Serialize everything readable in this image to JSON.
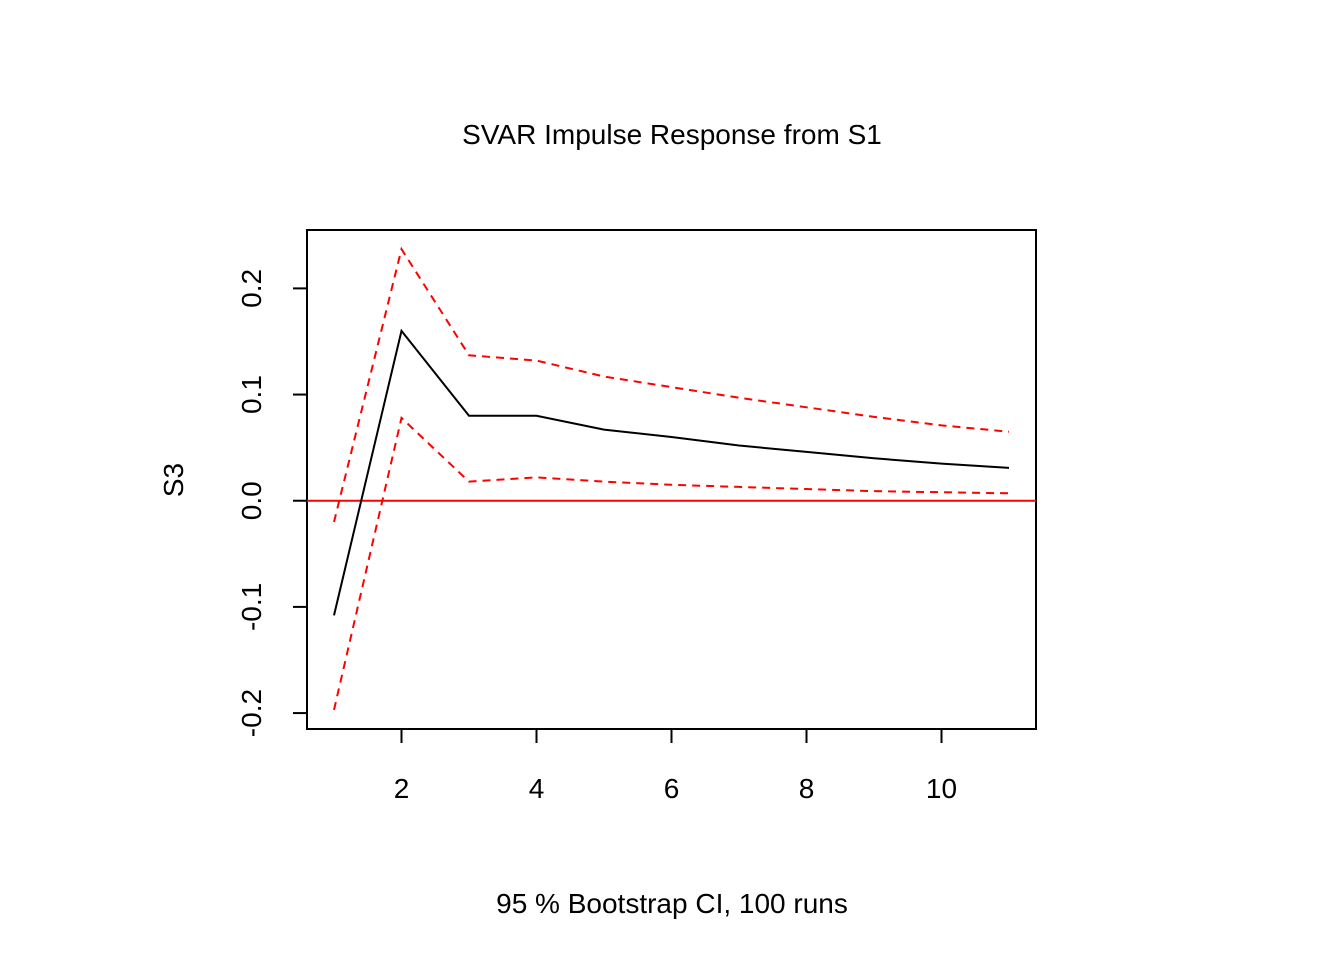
{
  "chart_data": {
    "type": "line",
    "title": "SVAR Impulse Response from S1",
    "xlabel": "95 % Bootstrap CI,  100 runs",
    "ylabel": "S3",
    "xlim": [
      0.6,
      11.4
    ],
    "ylim": [
      -0.215,
      0.255
    ],
    "x_ticks": [
      2,
      4,
      6,
      8,
      10
    ],
    "x_tick_labels": [
      "2",
      "4",
      "6",
      "8",
      "10"
    ],
    "y_ticks": [
      -0.2,
      -0.1,
      0.0,
      0.1,
      0.2
    ],
    "y_tick_labels": [
      "-0.2",
      "-0.1",
      "0.0",
      "0.1",
      "0.2"
    ],
    "x": [
      1,
      2,
      3,
      4,
      5,
      6,
      7,
      8,
      9,
      10,
      11
    ],
    "series": [
      {
        "role": "response",
        "color": "#000000",
        "dash": "solid",
        "values": [
          -0.108,
          0.16,
          0.08,
          0.08,
          0.067,
          0.06,
          0.052,
          0.046,
          0.04,
          0.035,
          0.031
        ]
      },
      {
        "role": "upper-ci",
        "color": "#ff0000",
        "dash": "dashed",
        "values": [
          -0.02,
          0.237,
          0.137,
          0.132,
          0.117,
          0.107,
          0.097,
          0.088,
          0.079,
          0.071,
          0.065
        ]
      },
      {
        "role": "lower-ci",
        "color": "#ff0000",
        "dash": "dashed",
        "values": [
          -0.197,
          0.078,
          0.018,
          0.022,
          0.018,
          0.015,
          0.013,
          0.011,
          0.009,
          0.008,
          0.007
        ]
      }
    ],
    "reference_line": {
      "y": 0,
      "color": "#ff0000"
    },
    "grid": false,
    "legend": "none"
  }
}
